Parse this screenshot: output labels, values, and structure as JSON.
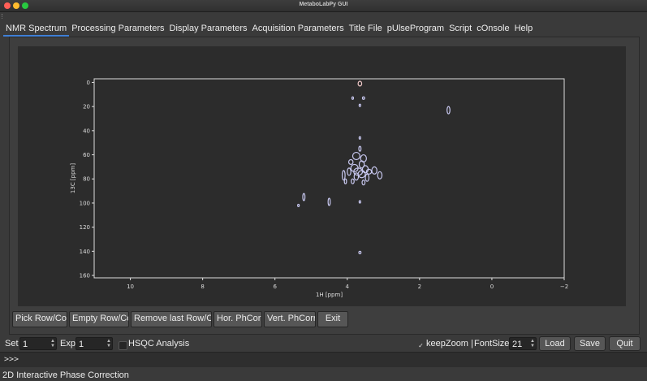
{
  "window": {
    "title": "MetaboLabPy GUI"
  },
  "tabs": [
    {
      "label": "NMR Spectrum",
      "active": true
    },
    {
      "label": "Processing Parameters"
    },
    {
      "label": "Display Parameters"
    },
    {
      "label": "Acquisition Parameters"
    },
    {
      "label": "Title File"
    },
    {
      "label": "pUlseProgram"
    },
    {
      "label": "Script"
    },
    {
      "label": "cOnsole"
    },
    {
      "label": "Help"
    }
  ],
  "toolbar": {
    "pick_row_col": "Pick Row/Col",
    "empty_row_col": "Empty Row/Col",
    "remove_last": "Remove last Row/Col",
    "hor_phcorr": "Hor. PhCorr",
    "vert_phcorr": "Vert. PhCorr",
    "exit": "Exit"
  },
  "controls": {
    "set_label": "Set",
    "set_value": "1",
    "exp_label": "Exp",
    "exp_value": "1",
    "hsqc_label": "HSQC Analysis",
    "hsqc_checked": false,
    "keepzoom_label": "keepZoom |",
    "keepzoom_checked": true,
    "fontsize_label": "FontSize",
    "fontsize_value": "21",
    "load": "Load",
    "save": "Save",
    "quit": "Quit"
  },
  "console": {
    "prompt": ">>>"
  },
  "status": "2D Interactive Phase Correction",
  "chart_data": {
    "type": "scatter",
    "xlabel": "1H [ppm]",
    "ylabel": "13C [ppm]",
    "xlim": [
      11,
      -2
    ],
    "ylim": [
      162,
      -3
    ],
    "xticks": [
      10,
      8,
      6,
      4,
      2,
      0,
      -2
    ],
    "yticks": [
      0,
      20,
      40,
      60,
      80,
      100,
      120,
      140,
      160
    ],
    "colors": {
      "contour": "#c8c8f0",
      "negative": "#f0c8c8",
      "frame": "#dddddd",
      "background": "#2c2c2c"
    },
    "peaks": [
      {
        "x": 3.65,
        "y": 1,
        "rx": 0.05,
        "ry": 2,
        "color": "#f0c8c8"
      },
      {
        "x": 3.55,
        "y": 13,
        "rx": 0.03,
        "ry": 1
      },
      {
        "x": 3.85,
        "y": 13,
        "rx": 0.02,
        "ry": 1
      },
      {
        "x": 3.65,
        "y": 19,
        "rx": 0.02,
        "ry": 1
      },
      {
        "x": 1.2,
        "y": 23,
        "rx": 0.04,
        "ry": 3
      },
      {
        "x": 3.65,
        "y": 46,
        "rx": 0.02,
        "ry": 1
      },
      {
        "x": 3.65,
        "y": 55,
        "rx": 0.03,
        "ry": 2
      },
      {
        "x": 3.75,
        "y": 61,
        "rx": 0.1,
        "ry": 3
      },
      {
        "x": 3.55,
        "y": 63,
        "rx": 0.08,
        "ry": 3
      },
      {
        "x": 3.9,
        "y": 66,
        "rx": 0.06,
        "ry": 2
      },
      {
        "x": 3.6,
        "y": 68,
        "rx": 0.07,
        "ry": 3
      },
      {
        "x": 3.8,
        "y": 71,
        "rx": 0.1,
        "ry": 3
      },
      {
        "x": 3.5,
        "y": 72,
        "rx": 0.08,
        "ry": 3
      },
      {
        "x": 3.95,
        "y": 74,
        "rx": 0.05,
        "ry": 3
      },
      {
        "x": 3.7,
        "y": 74,
        "rx": 0.12,
        "ry": 3
      },
      {
        "x": 3.4,
        "y": 74,
        "rx": 0.07,
        "ry": 2
      },
      {
        "x": 3.25,
        "y": 73,
        "rx": 0.07,
        "ry": 3
      },
      {
        "x": 3.6,
        "y": 76,
        "rx": 0.1,
        "ry": 3
      },
      {
        "x": 3.1,
        "y": 77,
        "rx": 0.06,
        "ry": 3
      },
      {
        "x": 4.1,
        "y": 77,
        "rx": 0.04,
        "ry": 4
      },
      {
        "x": 3.75,
        "y": 78,
        "rx": 0.06,
        "ry": 3
      },
      {
        "x": 3.45,
        "y": 79,
        "rx": 0.05,
        "ry": 3
      },
      {
        "x": 4.05,
        "y": 82,
        "rx": 0.03,
        "ry": 2
      },
      {
        "x": 3.85,
        "y": 82,
        "rx": 0.04,
        "ry": 2
      },
      {
        "x": 3.55,
        "y": 83,
        "rx": 0.04,
        "ry": 2
      },
      {
        "x": 5.2,
        "y": 95,
        "rx": 0.03,
        "ry": 3
      },
      {
        "x": 4.5,
        "y": 99,
        "rx": 0.03,
        "ry": 3
      },
      {
        "x": 3.65,
        "y": 99,
        "rx": 0.02,
        "ry": 1
      },
      {
        "x": 5.35,
        "y": 102,
        "rx": 0.02,
        "ry": 1
      },
      {
        "x": 3.65,
        "y": 141,
        "rx": 0.03,
        "ry": 1
      }
    ]
  }
}
